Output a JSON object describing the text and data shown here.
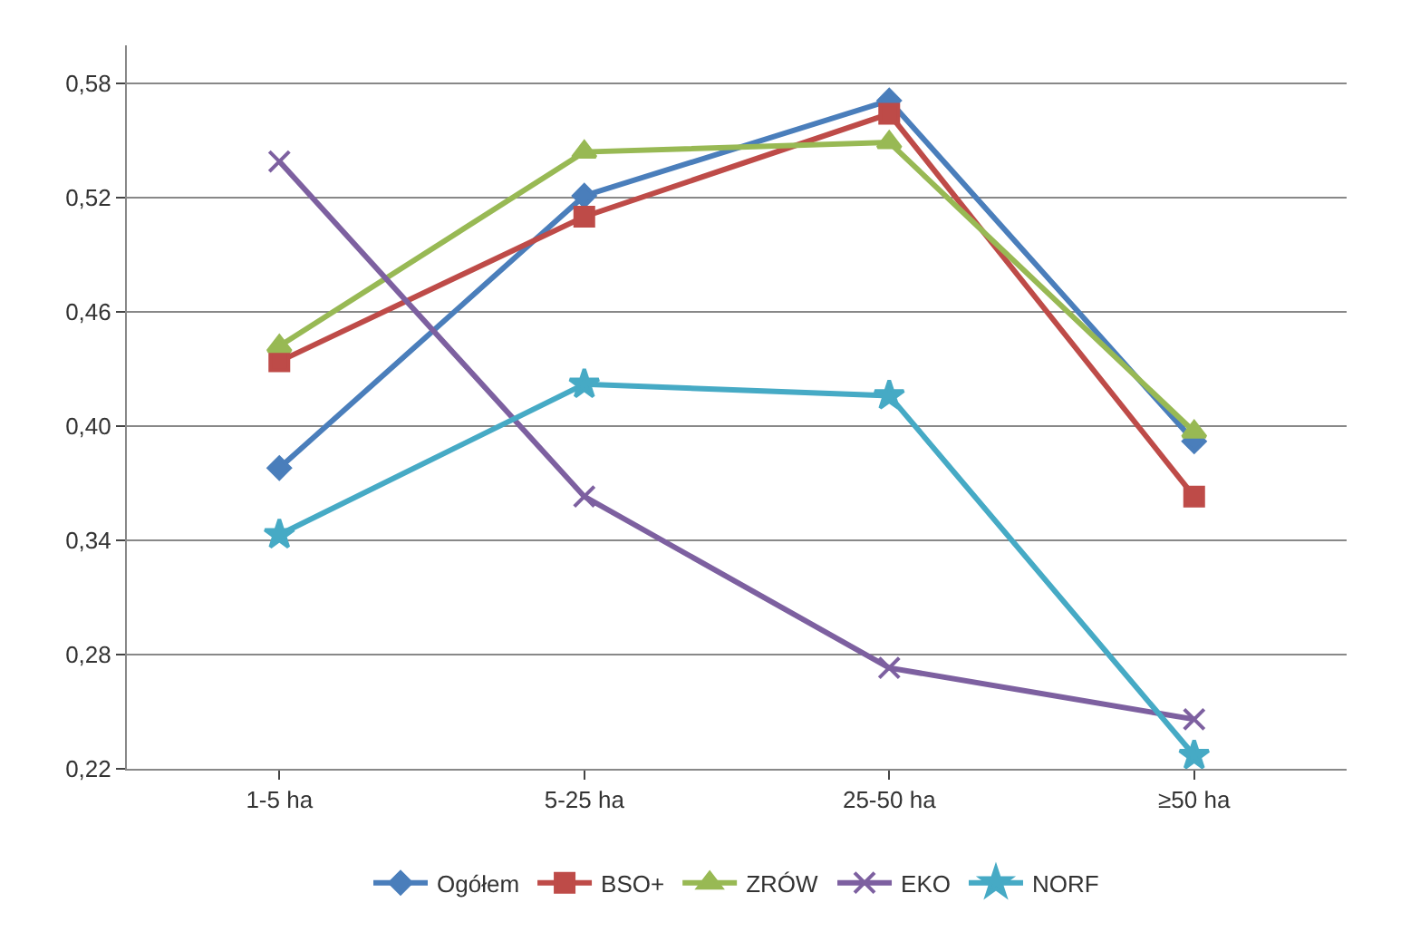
{
  "chart_data": {
    "type": "line",
    "categories": [
      "1-5 ha",
      "5-25 ha",
      "25-50 ha",
      "≥50 ha"
    ],
    "series": [
      {
        "name": "Ogółem",
        "color": "#4a7ebb",
        "marker": "diamond",
        "values": [
          0.378,
          0.521,
          0.571,
          0.392
        ]
      },
      {
        "name": "BSO+",
        "color": "#be4b48",
        "marker": "square",
        "values": [
          0.434,
          0.51,
          0.564,
          0.363
        ]
      },
      {
        "name": "ZRÓW",
        "color": "#98b954",
        "marker": "triangle",
        "values": [
          0.442,
          0.544,
          0.549,
          0.397
        ]
      },
      {
        "name": "EKO",
        "color": "#7d60a0",
        "marker": "cross",
        "values": [
          0.539,
          0.363,
          0.273,
          0.246
        ]
      },
      {
        "name": "NORF",
        "color": "#46aac5",
        "marker": "star",
        "values": [
          0.343,
          0.422,
          0.416,
          0.227
        ]
      }
    ],
    "ylim": [
      0.22,
      0.6
    ],
    "yticks": [
      {
        "value": 0.22,
        "label": "0,22"
      },
      {
        "value": 0.28,
        "label": "0,28"
      },
      {
        "value": 0.34,
        "label": "0,34"
      },
      {
        "value": 0.4,
        "label": "0,40"
      },
      {
        "value": 0.46,
        "label": "0,46"
      },
      {
        "value": 0.52,
        "label": "0,52"
      },
      {
        "value": 0.58,
        "label": "0,58"
      }
    ],
    "grid": "y",
    "legend": "bottom",
    "line_style": "solid"
  }
}
